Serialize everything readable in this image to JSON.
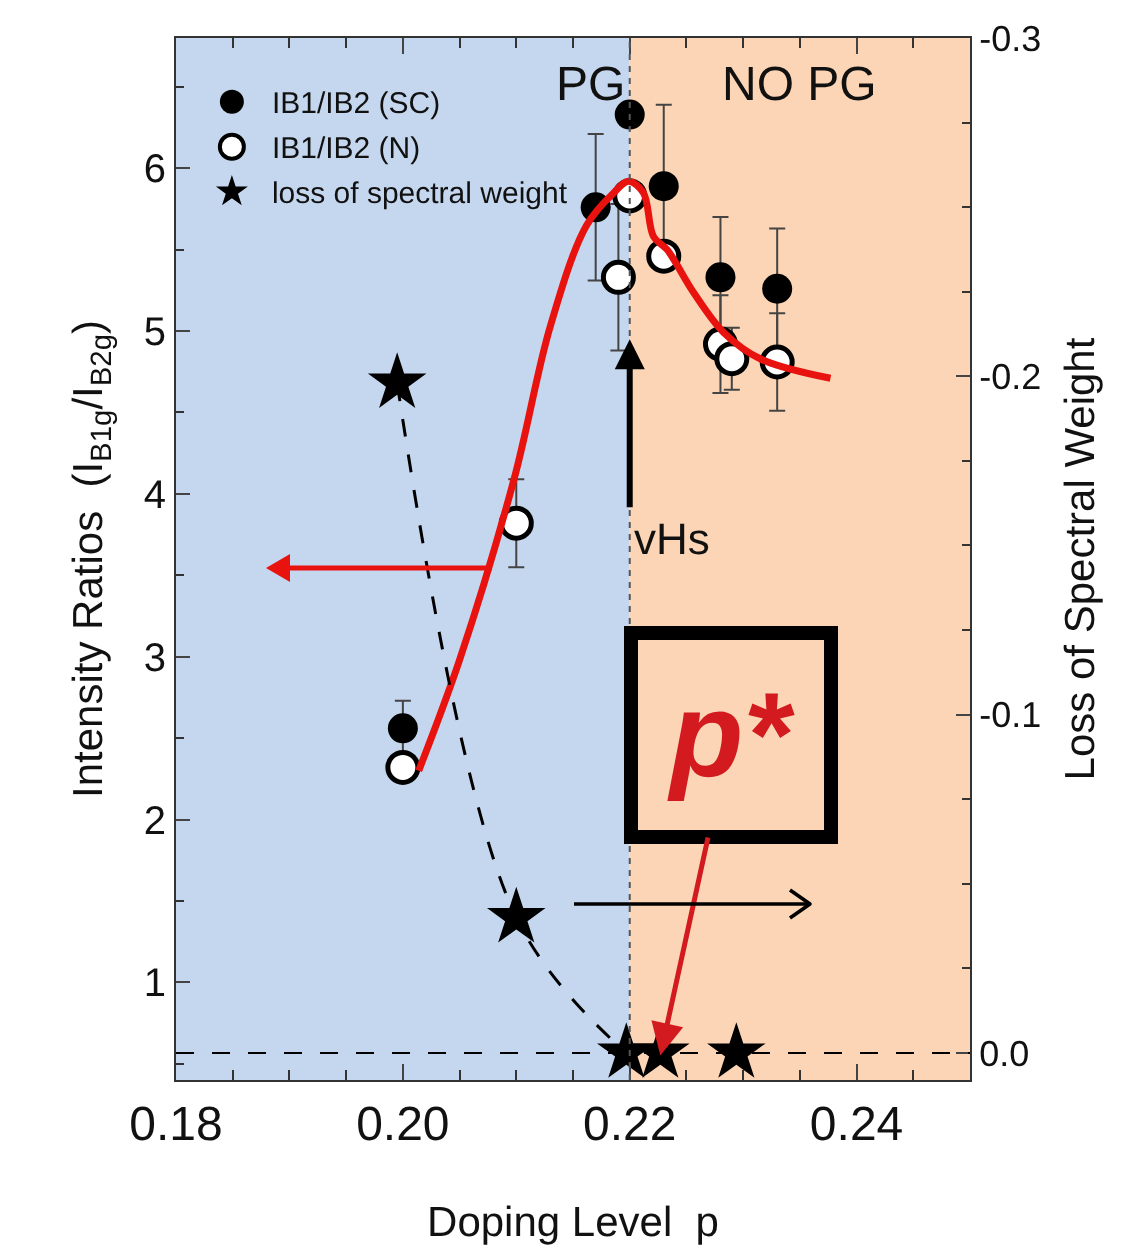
{
  "chart_data": {
    "type": "scatter",
    "xlabel": "Doping Level  p",
    "ylabel": "Intensity Ratios  (I$_{B1g}$/I$_{B2g}$)",
    "y2label": "Loss of Spectral Weight",
    "xlim": [
      0.18,
      0.25
    ],
    "xticks": [
      0.18,
      {
        "value": 0.2,
        "label": "0.20"
      },
      0.22,
      0.24
    ],
    "ylim": [
      0.4,
      6.8
    ],
    "yticks": [
      1,
      2,
      3,
      4,
      5,
      6
    ],
    "y2lim": [
      0.008,
      -0.3
    ],
    "y2ticks": [
      {
        "value": 0,
        "label": "0.0"
      },
      -0.1,
      -0.2,
      -0.3
    ],
    "grid": false,
    "legend": "top left",
    "series": [
      {
        "name": "IB1/IB2 (SC)",
        "marker": "circle",
        "color": "#000000",
        "x": [
          0.2,
          0.217,
          0.22,
          0.223,
          0.228,
          0.233
        ],
        "values": [
          2.56,
          5.76,
          6.33,
          5.89,
          5.33,
          5.26
        ],
        "errors": [
          0.17,
          0.45,
          null,
          0.5,
          0.37,
          0.37
        ]
      },
      {
        "name": "IB1/IB2 (N)",
        "marker": "circle-open",
        "color": "#000000",
        "x": [
          0.2,
          0.21,
          0.219,
          0.22,
          0.223,
          0.228,
          0.229,
          0.233
        ],
        "values": [
          2.32,
          3.82,
          5.33,
          5.83,
          5.46,
          4.92,
          4.83,
          4.81
        ],
        "errors": [
          null,
          0.27,
          0.45,
          null,
          null,
          0.3,
          0.19,
          0.3
        ]
      },
      {
        "type": "line",
        "color": "#e8130f",
        "line_style": "solid",
        "x": [
          0.2014,
          0.205,
          0.2098,
          0.213,
          0.2162,
          0.2186,
          0.2199,
          0.2212,
          0.2221,
          0.2233,
          0.2256,
          0.2283,
          0.2315,
          0.2377
        ],
        "values": [
          2.3,
          2.98,
          4.09,
          5.03,
          5.65,
          5.85,
          5.92,
          5.85,
          5.58,
          5.5,
          5.24,
          4.99,
          4.83,
          4.71
        ]
      },
      {
        "type": "line",
        "axis": "y2",
        "color": "#000000",
        "line_style": "dashed",
        "x": [
          0.1995,
          0.21,
          0.2197
        ],
        "values": [
          -0.198,
          -0.04,
          0
        ]
      },
      {
        "name": "loss of spectral weight",
        "axis": "y2",
        "marker": "star",
        "color": "#000000",
        "x": [
          0.1995,
          0.21,
          0.2197,
          0.2227,
          0.2294
        ],
        "values": [
          -0.198,
          -0.04,
          0,
          0,
          0
        ]
      }
    ],
    "bands": [
      {
        "axis": "x",
        "from": 0.18,
        "to": 0.22,
        "label": "PG",
        "color": "#c5d7ee"
      },
      {
        "axis": "x",
        "from": 0.22,
        "to": 0.25,
        "label": "NO PG",
        "color": "#fbd5b5"
      }
    ],
    "ref_lines": [
      {
        "axis": "y2",
        "value": 0,
        "line_style": "dashed",
        "color": "#000000"
      },
      {
        "axis": "x",
        "value": 0.22,
        "line_style": "dotted",
        "color": "#555555"
      }
    ],
    "annotations": [
      {
        "text": "vHs",
        "x": 0.22,
        "y": 3.9
      },
      {
        "text": "p*",
        "x": 0.2227,
        "y": 0.55
      }
    ]
  }
}
